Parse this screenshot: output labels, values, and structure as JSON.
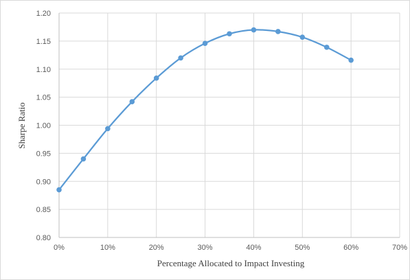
{
  "chart_data": {
    "type": "line",
    "title": "",
    "xlabel": "Percentage Allocated to Impact Investing",
    "ylabel": "Sharpe Ratio",
    "x": [
      0,
      5,
      10,
      15,
      20,
      25,
      30,
      35,
      40,
      45,
      50,
      55,
      60
    ],
    "x_tick_values": [
      0,
      10,
      20,
      30,
      40,
      50,
      60,
      70
    ],
    "x_tick_labels": [
      "0%",
      "10%",
      "20%",
      "30%",
      "40%",
      "50%",
      "60%",
      "70%"
    ],
    "xlim": [
      0,
      70
    ],
    "y_tick_values": [
      0.8,
      0.85,
      0.9,
      0.95,
      1.0,
      1.05,
      1.1,
      1.15,
      1.2
    ],
    "y_tick_labels": [
      "0.80",
      "0.85",
      "0.90",
      "0.95",
      "1.00",
      "1.05",
      "1.10",
      "1.15",
      "1.20"
    ],
    "ylim": [
      0.8,
      1.2
    ],
    "grid": true,
    "legend": "none",
    "series": [
      {
        "values": [
          0.885,
          0.94,
          0.994,
          1.042,
          1.084,
          1.12,
          1.146,
          1.163,
          1.17,
          1.167,
          1.157,
          1.139,
          1.116
        ],
        "color": "#5b9bd5"
      }
    ],
    "gridline_color": "#d9d9d9",
    "axis_color": "#bfbfbf"
  }
}
